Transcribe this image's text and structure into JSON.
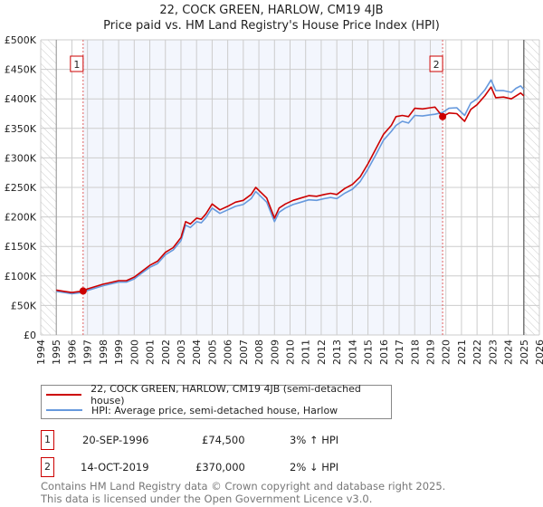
{
  "title_line1": "22, COCK GREEN, HARLOW, CM19 4JB",
  "title_line2": "Price paid vs. HM Land Registry's House Price Index (HPI)",
  "chart_data": {
    "type": "line",
    "title": "22, COCK GREEN, HARLOW, CM19 4JB — Price paid vs. HM Land Registry's House Price Index (HPI)",
    "xlim": [
      1994,
      2026
    ],
    "ylim": [
      0,
      500000
    ],
    "x_ticks": [
      "1994",
      "1995",
      "1996",
      "1997",
      "1998",
      "1999",
      "2000",
      "2001",
      "2002",
      "2003",
      "2004",
      "2005",
      "2006",
      "2007",
      "2008",
      "2009",
      "2010",
      "2011",
      "2012",
      "2013",
      "2014",
      "2015",
      "2016",
      "2017",
      "2018",
      "2019",
      "2020",
      "2021",
      "2022",
      "2023",
      "2024",
      "2025",
      "2026"
    ],
    "y_ticks": [
      {
        "v": 0,
        "label": "£0"
      },
      {
        "v": 50000,
        "label": "£50K"
      },
      {
        "v": 100000,
        "label": "£100K"
      },
      {
        "v": 150000,
        "label": "£150K"
      },
      {
        "v": 200000,
        "label": "£200K"
      },
      {
        "v": 250000,
        "label": "£250K"
      },
      {
        "v": 300000,
        "label": "£300K"
      },
      {
        "v": 350000,
        "label": "£350K"
      },
      {
        "v": 400000,
        "label": "£400K"
      },
      {
        "v": 450000,
        "label": "£450K"
      },
      {
        "v": 500000,
        "label": "£500K"
      }
    ],
    "grid": true,
    "data_range": [
      1995.0,
      2025.0
    ],
    "series": [
      {
        "name": "22, COCK GREEN, HARLOW, CM19 4JB (semi-detached house)",
        "color": "#cc0000",
        "x": [
          1995.0,
          1995.5,
          1996.0,
          1996.72,
          1997.0,
          1997.5,
          1998.0,
          1998.5,
          1999.0,
          1999.5,
          2000.0,
          2000.5,
          2001.0,
          2001.5,
          2002.0,
          2002.5,
          2003.0,
          2003.3,
          2003.6,
          2004.0,
          2004.3,
          2004.6,
          2005.0,
          2005.5,
          2006.0,
          2006.5,
          2007.0,
          2007.5,
          2007.8,
          2008.5,
          2009.0,
          2009.3,
          2009.7,
          2010.2,
          2010.7,
          2011.2,
          2011.7,
          2012.2,
          2012.6,
          2013.0,
          2013.5,
          2014.0,
          2014.5,
          2015.0,
          2015.5,
          2016.0,
          2016.5,
          2016.8,
          2017.2,
          2017.6,
          2018.0,
          2018.5,
          2019.0,
          2019.3,
          2019.79,
          2020.2,
          2020.7,
          2021.2,
          2021.6,
          2022.0,
          2022.5,
          2022.9,
          2023.2,
          2023.7,
          2024.2,
          2024.5,
          2024.8,
          2025.0
        ],
        "y": [
          76000,
          74000,
          72000,
          74500,
          78000,
          82000,
          86000,
          89000,
          92000,
          92000,
          98000,
          108000,
          118000,
          125000,
          140000,
          148000,
          165000,
          192000,
          188000,
          198000,
          196000,
          205000,
          222000,
          212000,
          218000,
          225000,
          228000,
          238000,
          250000,
          232000,
          198000,
          215000,
          222000,
          228000,
          232000,
          236000,
          235000,
          238000,
          240000,
          238000,
          248000,
          255000,
          268000,
          290000,
          315000,
          340000,
          355000,
          370000,
          372000,
          370000,
          384000,
          383000,
          385000,
          386000,
          370000,
          376000,
          375000,
          362000,
          382000,
          390000,
          405000,
          420000,
          402000,
          403000,
          400000,
          405000,
          410000,
          405000
        ]
      },
      {
        "name": "HPI: Average price, semi-detached house, Harlow",
        "color": "#6699dd",
        "x": [
          1995.0,
          1995.5,
          1996.0,
          1996.72,
          1997.0,
          1997.5,
          1998.0,
          1998.5,
          1999.0,
          1999.5,
          2000.0,
          2000.5,
          2001.0,
          2001.5,
          2002.0,
          2002.5,
          2003.0,
          2003.3,
          2003.6,
          2004.0,
          2004.3,
          2004.6,
          2005.0,
          2005.5,
          2006.0,
          2006.5,
          2007.0,
          2007.5,
          2007.8,
          2008.5,
          2009.0,
          2009.3,
          2009.7,
          2010.2,
          2010.7,
          2011.2,
          2011.7,
          2012.2,
          2012.6,
          2013.0,
          2013.5,
          2014.0,
          2014.5,
          2015.0,
          2015.5,
          2016.0,
          2016.5,
          2016.8,
          2017.2,
          2017.6,
          2018.0,
          2018.5,
          2019.0,
          2019.3,
          2019.79,
          2020.2,
          2020.7,
          2021.2,
          2021.6,
          2022.0,
          2022.5,
          2022.9,
          2023.2,
          2023.7,
          2024.2,
          2024.5,
          2024.8,
          2025.0
        ],
        "y": [
          74000,
          72000,
          70000,
          72300,
          75500,
          79500,
          83500,
          86500,
          89500,
          89500,
          95000,
          105000,
          114500,
          121000,
          136000,
          144000,
          160000,
          186000,
          182000,
          192000,
          190000,
          199000,
          215000,
          206000,
          212000,
          218000,
          221000,
          231000,
          243000,
          225000,
          192000,
          208000,
          215000,
          221000,
          225000,
          229000,
          228000,
          231000,
          233000,
          231000,
          240000,
          247000,
          260000,
          281000,
          305000,
          330000,
          345000,
          355000,
          362000,
          359000,
          372000,
          371000,
          373000,
          374000,
          377000,
          384000,
          385000,
          372000,
          393000,
          400000,
          415000,
          432000,
          414000,
          414000,
          411000,
          418000,
          422000,
          416000
        ]
      }
    ],
    "sales": [
      {
        "label": "1",
        "x": 1996.72,
        "y": 74500
      },
      {
        "label": "2",
        "x": 2019.79,
        "y": 370000
      }
    ]
  },
  "legend": {
    "property": "22, COCK GREEN, HARLOW, CM19 4JB (semi-detached house)",
    "hpi": "HPI: Average price, semi-detached house, Harlow"
  },
  "transactions": [
    {
      "num": "1",
      "date": "20-SEP-1996",
      "price": "£74,500",
      "hpi": "3% ↑ HPI"
    },
    {
      "num": "2",
      "date": "14-OCT-2019",
      "price": "£370,000",
      "hpi": "2% ↓ HPI"
    }
  ],
  "footer_line1": "Contains HM Land Registry data © Crown copyright and database right 2025.",
  "footer_line2": "This data is licensed under the Open Government Licence v3.0."
}
